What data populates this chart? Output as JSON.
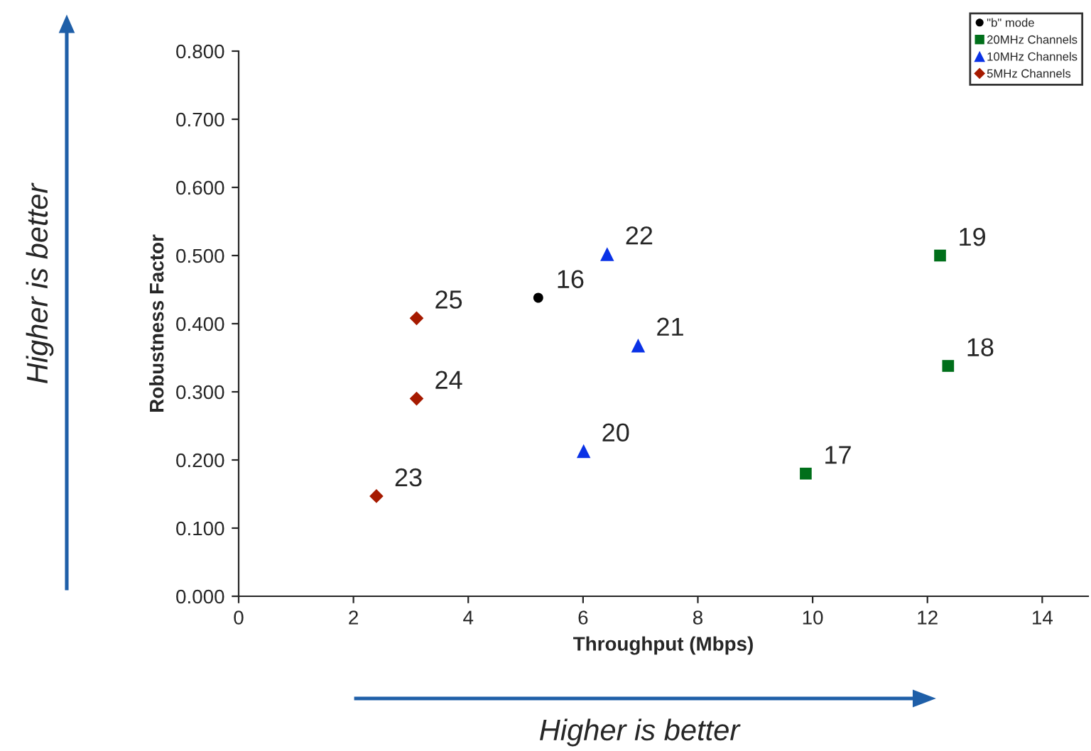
{
  "chart_data": {
    "type": "scatter",
    "xlabel": "Throughput (Mbps)",
    "ylabel": "Robustness Factor",
    "xlim": [
      0,
      14.8
    ],
    "xticks": [
      0,
      2,
      4,
      6,
      8,
      10,
      12,
      14
    ],
    "ylim": [
      0,
      0.8
    ],
    "yticks": [
      {
        "value": 0,
        "label": "0.000"
      },
      {
        "value": 0.1,
        "label": "0.100"
      },
      {
        "value": 0.2,
        "label": "0.200"
      },
      {
        "value": 0.3,
        "label": "0.300"
      },
      {
        "value": 0.4,
        "label": "0.400"
      },
      {
        "value": 0.5,
        "label": "0.500"
      },
      {
        "value": 0.6,
        "label": "0.600"
      },
      {
        "value": 0.7,
        "label": "0.700"
      },
      {
        "value": 0.8,
        "label": "0.800"
      }
    ],
    "grid": false,
    "legend": "top right",
    "series": [
      {
        "name": "\"b\" mode",
        "color": "#000000",
        "marker": "circle",
        "x": [
          5.22
        ],
        "values": [
          0.438
        ]
      },
      {
        "name": "20MHz Channels",
        "color": "#006f1a",
        "marker": "square",
        "x": [
          9.88,
          12.36,
          12.22
        ],
        "values": [
          0.18,
          0.338,
          0.5
        ]
      },
      {
        "name": "10MHz Channels",
        "color": "#0a32e6",
        "marker": "triangle",
        "x": [
          6.01,
          6.96,
          6.42
        ],
        "values": [
          0.213,
          0.368,
          0.502
        ]
      },
      {
        "name": "5MHz Channels",
        "color": "#a61a00",
        "marker": "diamond",
        "x": [
          2.4,
          3.1,
          3.1
        ],
        "values": [
          0.147,
          0.29,
          0.408
        ]
      }
    ],
    "annotations": [
      {
        "text": "16",
        "x": 5.22,
        "y": 0.438
      },
      {
        "text": "17",
        "x": 9.88,
        "y": 0.18
      },
      {
        "text": "18",
        "x": 12.36,
        "y": 0.338
      },
      {
        "text": "19",
        "x": 12.22,
        "y": 0.5
      },
      {
        "text": "20",
        "x": 6.01,
        "y": 0.213
      },
      {
        "text": "21",
        "x": 6.96,
        "y": 0.368
      },
      {
        "text": "22",
        "x": 6.42,
        "y": 0.502
      },
      {
        "text": "23",
        "x": 2.4,
        "y": 0.147
      },
      {
        "text": "24",
        "x": 3.1,
        "y": 0.29
      },
      {
        "text": "25",
        "x": 3.1,
        "y": 0.408
      },
      "Higher is better",
      "Higher is better"
    ]
  }
}
